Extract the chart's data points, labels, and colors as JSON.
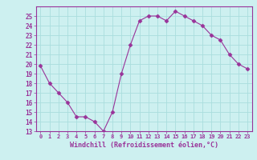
{
  "x": [
    0,
    1,
    2,
    3,
    4,
    5,
    6,
    7,
    8,
    9,
    10,
    11,
    12,
    13,
    14,
    15,
    16,
    17,
    18,
    19,
    20,
    21,
    22,
    23
  ],
  "y": [
    19.8,
    18.0,
    17.0,
    16.0,
    14.5,
    14.5,
    14.0,
    13.0,
    15.0,
    19.0,
    22.0,
    24.5,
    25.0,
    25.0,
    24.5,
    25.5,
    25.0,
    24.5,
    24.0,
    23.0,
    22.5,
    21.0,
    20.0,
    19.5
  ],
  "line_color": "#993399",
  "marker": "D",
  "marker_size": 2.5,
  "bg_color": "#cdf0f0",
  "grid_color": "#aadddd",
  "xlabel": "Windchill (Refroidissement éolien,°C)",
  "xlabel_color": "#993399",
  "tick_color": "#993399",
  "label_color": "#993399",
  "ylim": [
    13,
    26
  ],
  "xlim": [
    -0.5,
    23.5
  ],
  "yticks": [
    13,
    14,
    15,
    16,
    17,
    18,
    19,
    20,
    21,
    22,
    23,
    24,
    25
  ],
  "xticks": [
    0,
    1,
    2,
    3,
    4,
    5,
    6,
    7,
    8,
    9,
    10,
    11,
    12,
    13,
    14,
    15,
    16,
    17,
    18,
    19,
    20,
    21,
    22,
    23
  ],
  "xtick_labels": [
    "0",
    "1",
    "2",
    "3",
    "4",
    "5",
    "6",
    "7",
    "8",
    "9",
    "10",
    "11",
    "12",
    "13",
    "14",
    "15",
    "16",
    "17",
    "18",
    "19",
    "20",
    "21",
    "22",
    "23"
  ]
}
